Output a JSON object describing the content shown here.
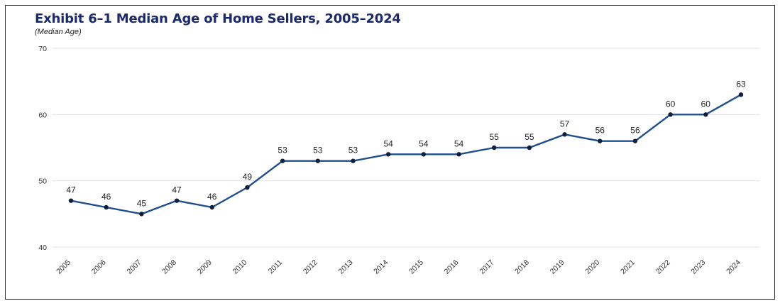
{
  "chart_data": {
    "type": "line",
    "title": "Exhibit 6–1 Median Age of Home Sellers, 2005–2024",
    "subtitle": "(Median Age)",
    "categories": [
      "2005",
      "2006",
      "2007",
      "2008",
      "2009",
      "2010",
      "2011",
      "2012",
      "2013",
      "2014",
      "2015",
      "2016",
      "2017",
      "2018",
      "2019",
      "2020",
      "2021",
      "2022",
      "2023",
      "2024"
    ],
    "series": [
      {
        "values": [
          47,
          46,
          45,
          47,
          46,
          49,
          53,
          53,
          53,
          54,
          54,
          54,
          55,
          55,
          57,
          56,
          56,
          60,
          60,
          63
        ]
      }
    ],
    "ylim": [
      40,
      70
    ],
    "yticks": [
      40,
      50,
      60,
      70
    ],
    "grid": true,
    "data_labels": true,
    "legend": "none",
    "colors": {
      "line": "#1f4e8c",
      "marker": "#0f1f3d",
      "grid": "#e2e2e2",
      "title": "#1b2a6b"
    }
  }
}
